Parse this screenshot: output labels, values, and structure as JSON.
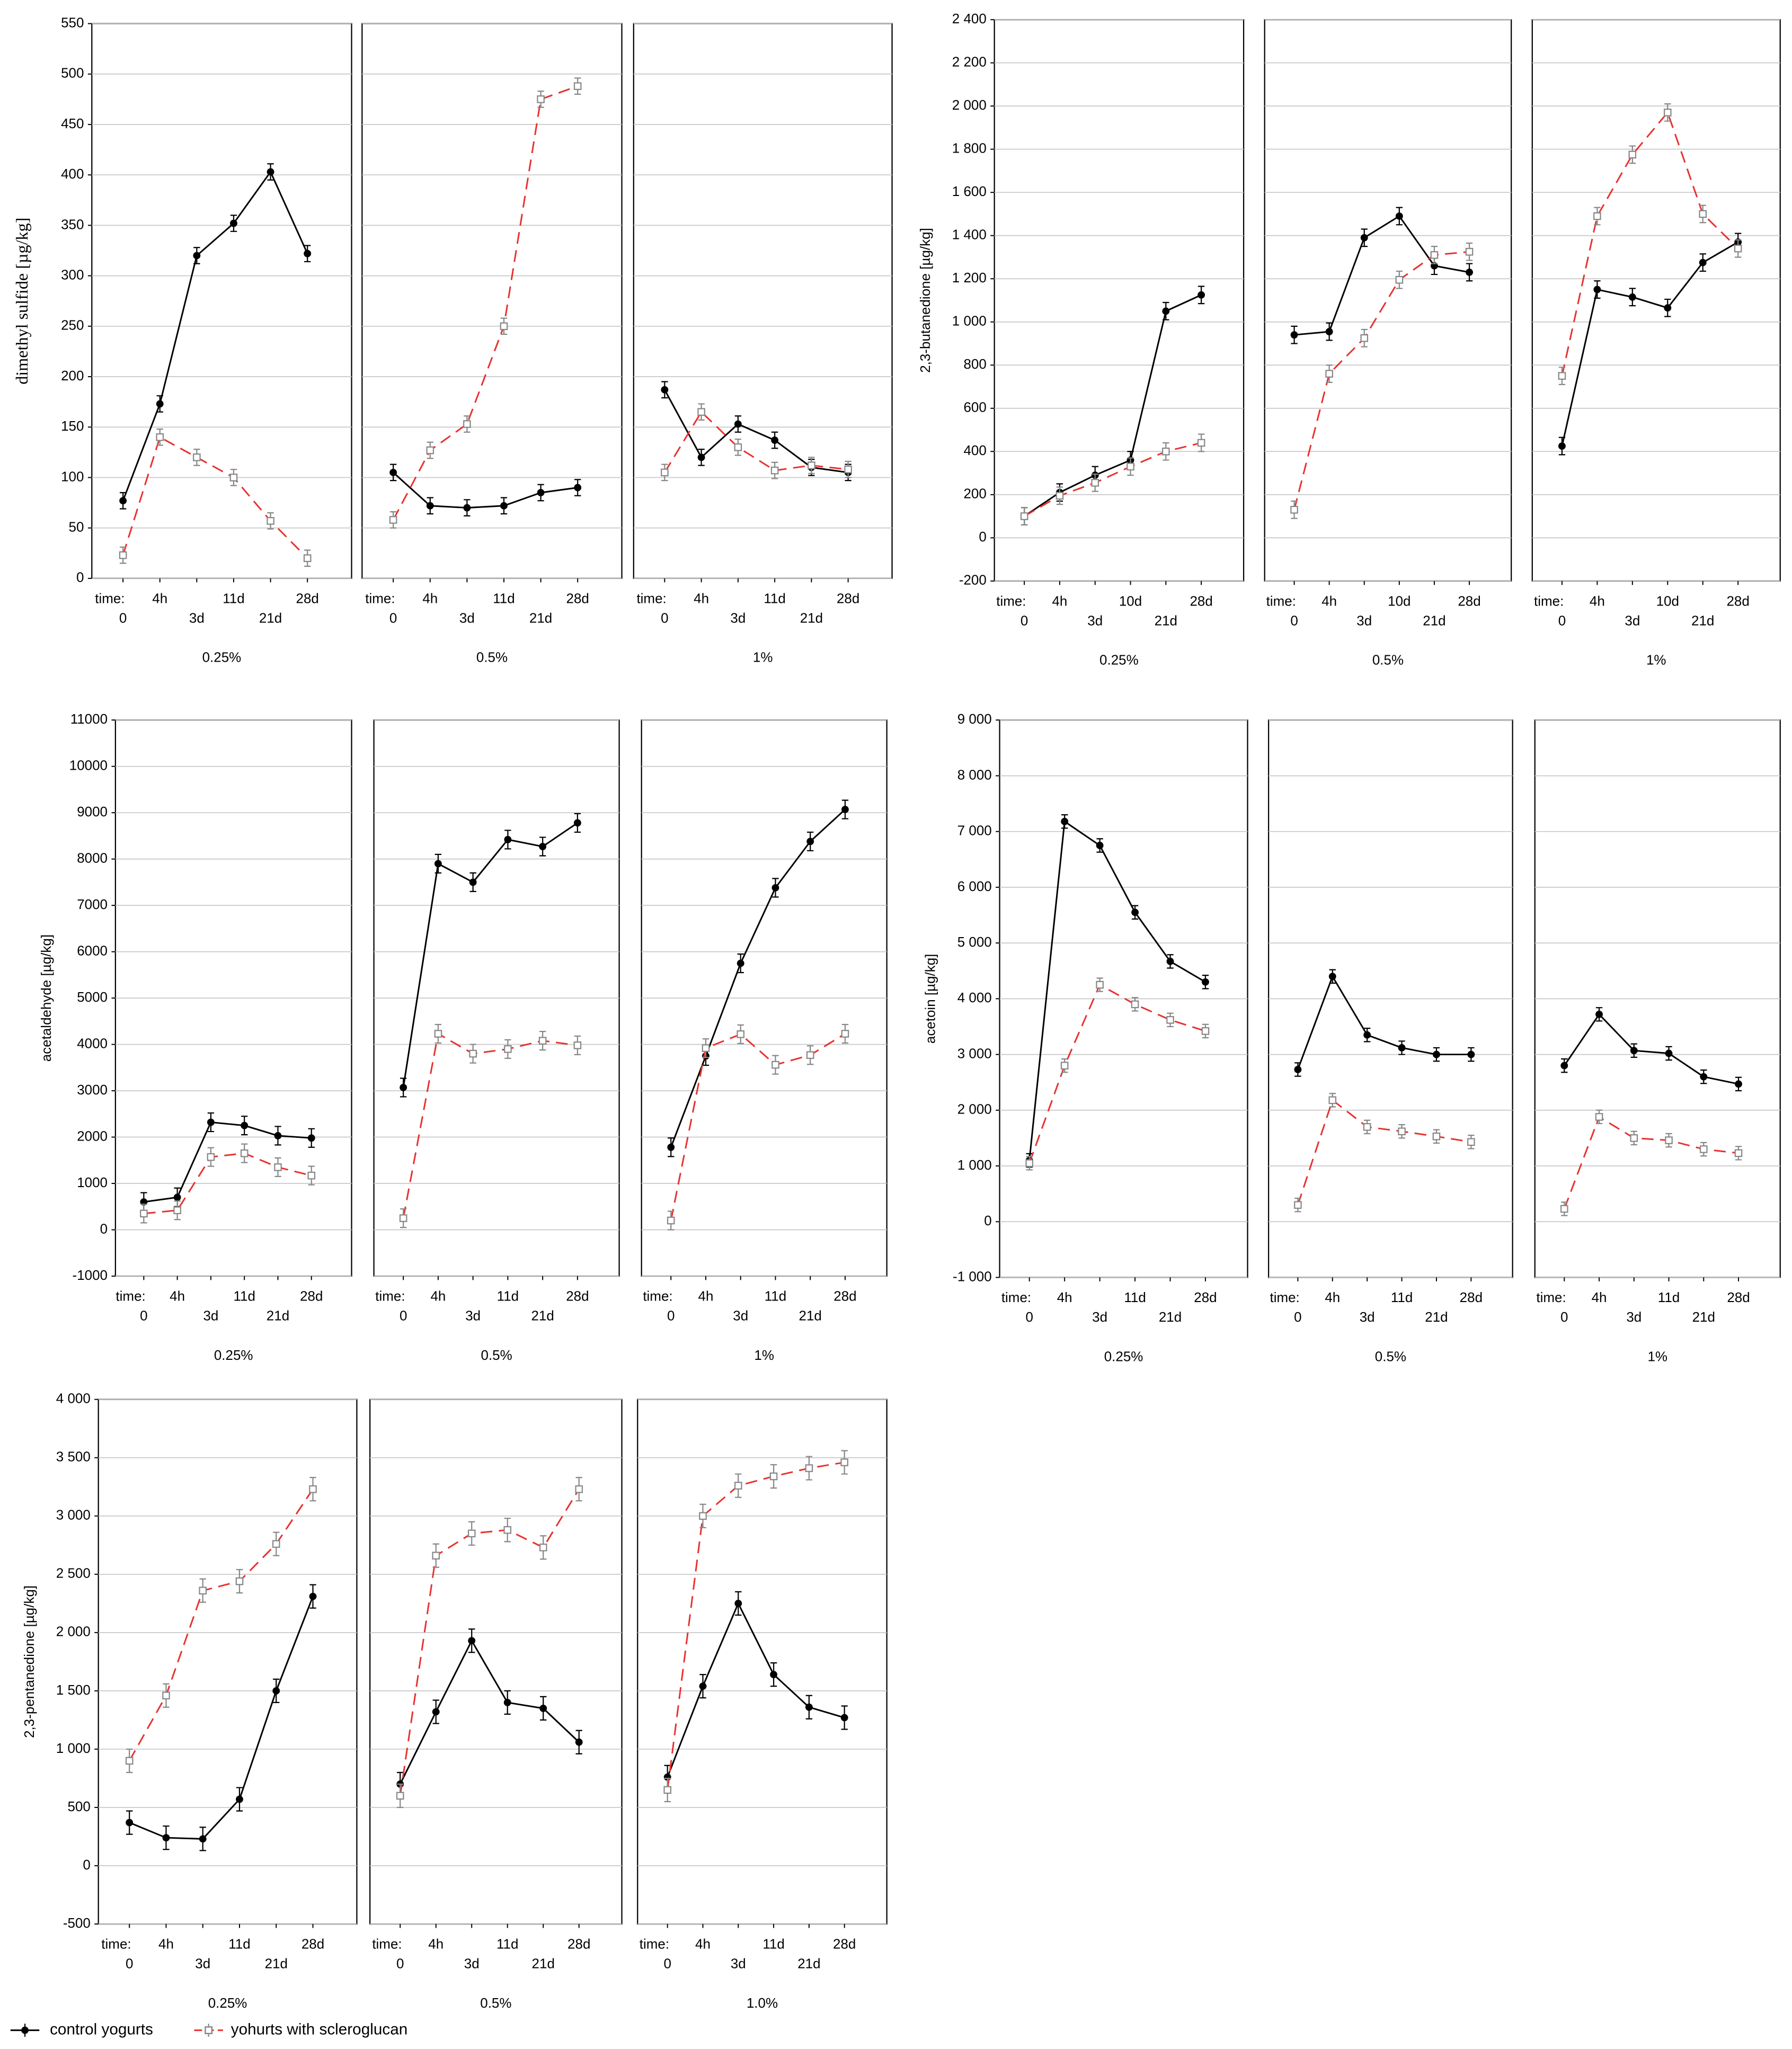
{
  "chart_data": [
    {
      "type": "line",
      "ylabel": "dimethyl sulfide [µg/kg]",
      "ylim": [
        0,
        550
      ],
      "yticks": [
        0,
        50,
        100,
        150,
        200,
        250,
        300,
        350,
        400,
        450,
        500,
        550
      ],
      "grid": true,
      "xlabel": "time:",
      "categories": [
        "0",
        "4h",
        "3d",
        "11d",
        "21d",
        "28d"
      ],
      "panels": [
        {
          "label": "0.25%",
          "series": [
            {
              "values": [
                77,
                173,
                320,
                352,
                403,
                322
              ],
              "errors": [
                8,
                8,
                8,
                8,
                8,
                8
              ]
            },
            {
              "values": [
                23,
                140,
                120,
                100,
                57,
                20
              ],
              "errors": [
                8,
                8,
                8,
                8,
                8,
                8
              ]
            }
          ]
        },
        {
          "label": "0.5%",
          "series": [
            {
              "values": [
                105,
                72,
                70,
                72,
                85,
                90
              ],
              "errors": [
                8,
                8,
                8,
                8,
                8,
                8
              ]
            },
            {
              "values": [
                58,
                127,
                153,
                250,
                475,
                488
              ],
              "errors": [
                8,
                8,
                8,
                8,
                8,
                8
              ]
            }
          ]
        },
        {
          "label": "1%",
          "series": [
            {
              "values": [
                187,
                120,
                153,
                137,
                110,
                105
              ],
              "errors": [
                8,
                8,
                8,
                8,
                8,
                8
              ]
            },
            {
              "values": [
                105,
                165,
                130,
                107,
                112,
                108
              ],
              "errors": [
                8,
                8,
                8,
                8,
                8,
                8
              ]
            }
          ]
        }
      ]
    },
    {
      "type": "line",
      "ylabel": "2,3-butanedione [µg/kg]",
      "ylim": [
        -200,
        2400
      ],
      "yticks": [
        -200,
        0,
        200,
        400,
        600,
        800,
        {
          "value": 1000,
          "label": "1 000"
        },
        {
          "value": 1200,
          "label": "1 200"
        },
        {
          "value": 1400,
          "label": "1 400"
        },
        {
          "value": 1600,
          "label": "1 600"
        },
        {
          "value": 1800,
          "label": "1 800"
        },
        {
          "value": 2000,
          "label": "2 000"
        },
        {
          "value": 2200,
          "label": "2 200"
        },
        {
          "value": 2400,
          "label": "2 400"
        }
      ],
      "grid": true,
      "xlabel": "time:",
      "categories": [
        "0",
        "4h",
        "3d",
        "10d",
        "21d",
        "28d"
      ],
      "panels": [
        {
          "label": "0.25%",
          "series": [
            {
              "values": [
                100,
                210,
                290,
                360,
                1050,
                1125
              ],
              "errors": [
                40,
                40,
                40,
                40,
                40,
                40
              ]
            },
            {
              "values": [
                100,
                195,
                255,
                330,
                400,
                440
              ],
              "errors": [
                40,
                40,
                40,
                40,
                40,
                40
              ]
            }
          ]
        },
        {
          "label": "0.5%",
          "series": [
            {
              "values": [
                940,
                955,
                1390,
                1490,
                1260,
                1230
              ],
              "errors": [
                40,
                40,
                40,
                40,
                40,
                40
              ]
            },
            {
              "values": [
                130,
                760,
                925,
                1195,
                1310,
                1325
              ],
              "errors": [
                40,
                40,
                40,
                40,
                40,
                40
              ]
            }
          ]
        },
        {
          "label": "1%",
          "series": [
            {
              "values": [
                425,
                1150,
                1115,
                1065,
                1275,
                1370
              ],
              "errors": [
                40,
                40,
                40,
                40,
                40,
                40
              ]
            },
            {
              "values": [
                750,
                1490,
                1775,
                1970,
                1500,
                1340
              ],
              "errors": [
                40,
                40,
                40,
                40,
                40,
                40
              ]
            }
          ]
        }
      ]
    },
    {
      "type": "line",
      "ylabel": "acetaldehyde [µg/kg]",
      "ylim": [
        -1000,
        11000
      ],
      "yticks": [
        -1000,
        0,
        1000,
        2000,
        3000,
        4000,
        5000,
        6000,
        7000,
        8000,
        9000,
        10000,
        11000
      ],
      "grid": true,
      "xlabel": "time:",
      "categories": [
        "0",
        "4h",
        "3d",
        "11d",
        "21d",
        "28d"
      ],
      "panels": [
        {
          "label": "0.25%",
          "series": [
            {
              "values": [
                600,
                700,
                2320,
                2250,
                2030,
                1980
              ],
              "errors": [
                200,
                200,
                200,
                200,
                200,
                200
              ]
            },
            {
              "values": [
                350,
                420,
                1570,
                1650,
                1350,
                1170
              ],
              "errors": [
                200,
                200,
                200,
                200,
                200,
                200
              ]
            }
          ]
        },
        {
          "label": "0.5%",
          "series": [
            {
              "values": [
                3070,
                7900,
                7500,
                8420,
                8270,
                8780
              ],
              "errors": [
                200,
                200,
                200,
                200,
                200,
                200
              ]
            },
            {
              "values": [
                250,
                4230,
                3800,
                3900,
                4080,
                3980
              ],
              "errors": [
                200,
                200,
                200,
                200,
                200,
                200
              ]
            }
          ]
        },
        {
          "label": "1%",
          "series": [
            {
              "values": [
                1780,
                3750,
                5750,
                7380,
                8380,
                9070
              ],
              "errors": [
                200,
                200,
                200,
                200,
                200,
                200
              ]
            },
            {
              "values": [
                200,
                3920,
                4220,
                3560,
                3770,
                4230
              ],
              "errors": [
                200,
                200,
                200,
                200,
                200,
                200
              ]
            }
          ]
        }
      ]
    },
    {
      "type": "line",
      "ylabel": "acetoin [µg/kg]",
      "ylim": [
        -1000,
        9000
      ],
      "yticks": [
        {
          "value": -1000,
          "label": "-1 000"
        },
        0,
        {
          "value": 1000,
          "label": "1 000"
        },
        {
          "value": 2000,
          "label": "2 000"
        },
        {
          "value": 3000,
          "label": "3 000"
        },
        {
          "value": 4000,
          "label": "4 000"
        },
        {
          "value": 5000,
          "label": "5 000"
        },
        {
          "value": 6000,
          "label": "6 000"
        },
        {
          "value": 7000,
          "label": "7 000"
        },
        {
          "value": 8000,
          "label": "8 000"
        },
        {
          "value": 9000,
          "label": "9 000"
        }
      ],
      "grid": true,
      "xlabel": "time:",
      "categories": [
        "0",
        "4h",
        "3d",
        "11d",
        "21d",
        "28d"
      ],
      "panels": [
        {
          "label": "0.25%",
          "series": [
            {
              "values": [
                1100,
                7180,
                6750,
                5550,
                4670,
                4300
              ],
              "errors": [
                120,
                120,
                120,
                120,
                120,
                120
              ]
            },
            {
              "values": [
                1050,
                2800,
                4250,
                3900,
                3620,
                3420
              ],
              "errors": [
                120,
                120,
                120,
                120,
                120,
                120
              ]
            }
          ]
        },
        {
          "label": "0.5%",
          "series": [
            {
              "values": [
                2730,
                4400,
                3350,
                3120,
                3000,
                3000
              ],
              "errors": [
                120,
                120,
                120,
                120,
                120,
                120
              ]
            },
            {
              "values": [
                300,
                2180,
                1700,
                1620,
                1530,
                1430
              ],
              "errors": [
                120,
                120,
                120,
                120,
                120,
                120
              ]
            }
          ]
        },
        {
          "label": "1%",
          "series": [
            {
              "values": [
                2800,
                3720,
                3070,
                3020,
                2600,
                2470
              ],
              "errors": [
                120,
                120,
                120,
                120,
                120,
                120
              ]
            },
            {
              "values": [
                230,
                1880,
                1500,
                1460,
                1300,
                1230
              ],
              "errors": [
                120,
                120,
                120,
                120,
                120,
                120
              ]
            }
          ]
        }
      ]
    },
    {
      "type": "line",
      "ylabel": "2,3-pentanedione [µg/kg]",
      "ylim": [
        -500,
        4000
      ],
      "yticks": [
        -500,
        0,
        500,
        {
          "value": 1000,
          "label": "1 000"
        },
        {
          "value": 1500,
          "label": "1 500"
        },
        {
          "value": 2000,
          "label": "2 000"
        },
        {
          "value": 2500,
          "label": "2 500"
        },
        {
          "value": 3000,
          "label": "3 000"
        },
        {
          "value": 3500,
          "label": "3 500"
        },
        {
          "value": 4000,
          "label": "4 000"
        }
      ],
      "grid": true,
      "xlabel": "time:",
      "categories": [
        "0",
        "4h",
        "3d",
        "11d",
        "21d",
        "28d"
      ],
      "panels": [
        {
          "label": "0.25%",
          "series": [
            {
              "values": [
                370,
                240,
                230,
                570,
                1500,
                2310
              ],
              "errors": [
                100,
                100,
                100,
                100,
                100,
                100
              ]
            },
            {
              "values": [
                900,
                1460,
                2360,
                2440,
                2760,
                3230
              ],
              "errors": [
                100,
                100,
                100,
                100,
                100,
                100
              ]
            }
          ]
        },
        {
          "label": "0.5%",
          "series": [
            {
              "values": [
                700,
                1320,
                1930,
                1400,
                1350,
                1060
              ],
              "errors": [
                100,
                100,
                100,
                100,
                100,
                100
              ]
            },
            {
              "values": [
                600,
                2660,
                2850,
                2880,
                2730,
                3230
              ],
              "errors": [
                100,
                100,
                100,
                100,
                100,
                100
              ]
            }
          ]
        },
        {
          "label": "1.0%",
          "series": [
            {
              "values": [
                760,
                1540,
                2250,
                1640,
                1360,
                1270
              ],
              "errors": [
                100,
                100,
                100,
                100,
                100,
                100
              ]
            },
            {
              "values": [
                650,
                3000,
                3260,
                3340,
                3410,
                3460
              ],
              "errors": [
                100,
                100,
                100,
                100,
                100,
                100
              ]
            }
          ]
        }
      ]
    }
  ],
  "legend": [
    {
      "name": "control yogurts",
      "color": "#000000",
      "marker": "circle",
      "dashed": false
    },
    {
      "name": "yohurts with scleroglucan",
      "color": "#e8312f",
      "marker": "square",
      "dashed": true
    }
  ]
}
